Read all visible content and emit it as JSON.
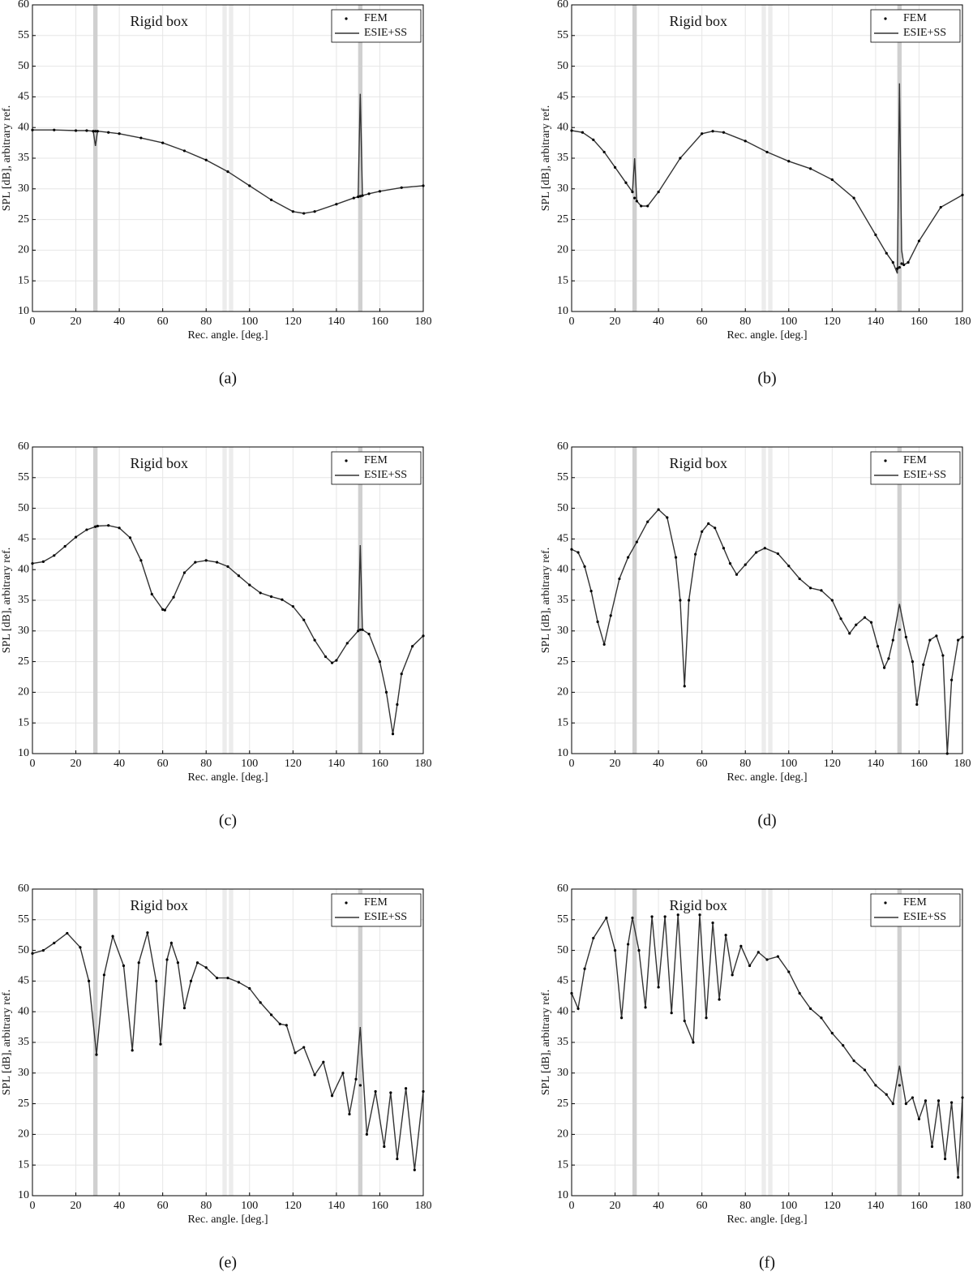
{
  "chart_data": [
    {
      "type": "line",
      "annotation": "Rigid box",
      "caption": "(a)",
      "xlabel": "Rec. angle. [deg.]",
      "ylabel": "SPL [dB], arbitrary ref.",
      "xlim": [
        0,
        180
      ],
      "ylim": [
        10,
        60
      ],
      "xticks": [
        0,
        20,
        40,
        60,
        80,
        100,
        120,
        140,
        160,
        180
      ],
      "yticks": [
        10,
        15,
        20,
        25,
        30,
        35,
        40,
        45,
        50,
        55,
        60
      ],
      "grid": true,
      "legend": "upper right",
      "highlight_bands": [
        [
          28,
          30
        ],
        [
          150,
          152
        ]
      ],
      "light_bands": [
        [
          87.5,
          89.5
        ],
        [
          90.5,
          92.5
        ]
      ],
      "x": [
        0,
        10,
        20,
        25,
        28,
        29,
        30,
        35,
        40,
        50,
        60,
        70,
        80,
        90,
        100,
        110,
        120,
        125,
        130,
        140,
        148,
        150,
        151,
        152,
        155,
        160,
        170,
        180
      ],
      "series": [
        {
          "name": "FEM",
          "color": "#000000",
          "values": [
            39.6,
            39.6,
            39.5,
            39.5,
            39.4,
            39.4,
            39.4,
            39.2,
            39,
            38.3,
            37.5,
            36.2,
            34.7,
            32.8,
            30.5,
            28.2,
            26.3,
            26,
            26.3,
            27.5,
            28.5,
            28.7,
            28.8,
            28.9,
            29.2,
            29.6,
            30.2,
            30.5
          ]
        },
        {
          "name": "ESIE+SS",
          "color": "#333333",
          "values": [
            39.6,
            39.6,
            39.5,
            39.5,
            39.4,
            37,
            39.4,
            39.2,
            39,
            38.3,
            37.5,
            36.2,
            34.7,
            32.8,
            30.5,
            28.2,
            26.3,
            26,
            26.3,
            27.5,
            28.5,
            28.7,
            45.5,
            28.9,
            29.2,
            29.6,
            30.2,
            30.5
          ]
        }
      ]
    },
    {
      "type": "line",
      "annotation": "Rigid box",
      "caption": "(b)",
      "xlabel": "Rec. angle. [deg.]",
      "ylabel": "SPL [dB], arbitrary ref.",
      "xlim": [
        0,
        180
      ],
      "ylim": [
        10,
        60
      ],
      "xticks": [
        0,
        20,
        40,
        60,
        80,
        100,
        120,
        140,
        160,
        180
      ],
      "yticks": [
        10,
        15,
        20,
        25,
        30,
        35,
        40,
        45,
        50,
        55,
        60
      ],
      "grid": true,
      "legend": "upper right",
      "highlight_bands": [
        [
          28,
          30
        ],
        [
          150,
          152
        ]
      ],
      "light_bands": [
        [
          87.5,
          89.5
        ],
        [
          90.5,
          92.5
        ]
      ],
      "x": [
        0,
        5,
        10,
        15,
        20,
        25,
        28,
        29,
        30,
        32,
        35,
        40,
        50,
        60,
        65,
        70,
        80,
        90,
        100,
        110,
        120,
        130,
        140,
        145,
        148,
        150,
        151,
        152,
        153,
        155,
        160,
        170,
        180
      ],
      "series": [
        {
          "name": "FEM",
          "color": "#000000",
          "values": [
            39.5,
            39.2,
            38,
            36,
            33.5,
            31,
            29.5,
            28.5,
            28,
            27.2,
            27.2,
            29.5,
            35,
            39,
            39.4,
            39.2,
            37.8,
            36,
            34.5,
            33.3,
            31.5,
            28.5,
            22.5,
            19.5,
            18,
            17,
            17.2,
            17.8,
            17.6,
            18,
            21.5,
            27,
            29
          ]
        },
        {
          "name": "ESIE+SS",
          "color": "#333333",
          "values": [
            39.5,
            39.2,
            38,
            36,
            33.5,
            31,
            29.5,
            35,
            28,
            27.2,
            27.2,
            29.5,
            35,
            39,
            39.4,
            39.2,
            37.8,
            36,
            34.5,
            33.3,
            31.5,
            28.5,
            22.5,
            19.5,
            18,
            16.2,
            47.2,
            20,
            17.6,
            18,
            21.5,
            27,
            29
          ]
        }
      ]
    },
    {
      "type": "line",
      "annotation": "Rigid box",
      "caption": "(c)",
      "xlabel": "Rec. angle. [deg.]",
      "ylabel": "SPL [dB], arbitrary ref.",
      "xlim": [
        0,
        180
      ],
      "ylim": [
        10,
        60
      ],
      "xticks": [
        0,
        20,
        40,
        60,
        80,
        100,
        120,
        140,
        160,
        180
      ],
      "yticks": [
        10,
        15,
        20,
        25,
        30,
        35,
        40,
        45,
        50,
        55,
        60
      ],
      "grid": true,
      "legend": "upper right",
      "highlight_bands": [
        [
          28,
          30
        ],
        [
          150,
          152
        ]
      ],
      "light_bands": [
        [
          87.5,
          89.5
        ],
        [
          90.5,
          92.5
        ]
      ],
      "x": [
        0,
        5,
        10,
        15,
        20,
        25,
        29,
        30,
        35,
        40,
        45,
        50,
        55,
        60,
        61,
        65,
        70,
        75,
        80,
        85,
        90,
        95,
        100,
        105,
        110,
        115,
        120,
        125,
        130,
        135,
        138,
        140,
        145,
        150,
        151,
        152,
        155,
        160,
        163,
        166,
        168,
        170,
        175,
        180
      ],
      "series": [
        {
          "name": "FEM",
          "color": "#000000",
          "values": [
            41,
            41.3,
            42.3,
            43.8,
            45.3,
            46.5,
            47,
            47.1,
            47.2,
            46.8,
            45.2,
            41.5,
            36,
            33.5,
            33.4,
            35.5,
            39.5,
            41.2,
            41.5,
            41.2,
            40.5,
            39,
            37.5,
            36.2,
            35.6,
            35.1,
            34,
            31.8,
            28.5,
            25.8,
            24.8,
            25.2,
            28,
            30,
            30.2,
            30.2,
            29.5,
            25,
            20,
            13.2,
            18,
            23,
            27.5,
            29.2
          ]
        },
        {
          "name": "ESIE+SS",
          "color": "#333333",
          "values": [
            41,
            41.3,
            42.3,
            43.8,
            45.3,
            46.5,
            47,
            47.1,
            47.2,
            46.8,
            45.2,
            41.5,
            36,
            33.5,
            33.4,
            35.5,
            39.5,
            41.2,
            41.5,
            41.2,
            40.5,
            39,
            37.5,
            36.2,
            35.6,
            35.1,
            34,
            31.8,
            28.5,
            25.8,
            24.8,
            25.2,
            28,
            30,
            44,
            30.2,
            29.5,
            25,
            20,
            13.2,
            18,
            23,
            27.5,
            29.2
          ]
        }
      ]
    },
    {
      "type": "line",
      "annotation": "Rigid box",
      "caption": "(d)",
      "xlabel": "Rec. angle. [deg.]",
      "ylabel": "SPL [dB], arbitrary ref.",
      "xlim": [
        0,
        180
      ],
      "ylim": [
        10,
        60
      ],
      "xticks": [
        0,
        20,
        40,
        60,
        80,
        100,
        120,
        140,
        160,
        180
      ],
      "yticks": [
        10,
        15,
        20,
        25,
        30,
        35,
        40,
        45,
        50,
        55,
        60
      ],
      "grid": true,
      "legend": "upper right",
      "highlight_bands": [
        [
          28,
          30
        ],
        [
          150,
          152
        ]
      ],
      "light_bands": [
        [
          87.5,
          89.5
        ],
        [
          90.5,
          92.5
        ]
      ],
      "x": [
        0,
        3,
        6,
        9,
        12,
        15,
        18,
        22,
        26,
        30,
        35,
        40,
        44,
        48,
        50,
        52,
        54,
        57,
        60,
        63,
        66,
        70,
        73,
        76,
        80,
        85,
        89,
        95,
        100,
        105,
        110,
        115,
        120,
        124,
        128,
        131,
        135,
        138,
        141,
        144,
        146,
        148,
        151,
        154,
        157,
        159,
        162,
        165,
        168,
        171,
        173,
        175,
        178,
        180
      ],
      "series": [
        {
          "name": "FEM",
          "color": "#000000",
          "values": [
            43.3,
            42.8,
            40.5,
            36.5,
            31.5,
            27.8,
            32.5,
            38.5,
            42,
            44.5,
            47.8,
            49.8,
            48.5,
            42,
            35,
            21,
            35,
            42.5,
            46.2,
            47.5,
            46.8,
            43.5,
            41,
            39.2,
            40.8,
            42.8,
            43.5,
            42.6,
            40.6,
            38.5,
            37,
            36.6,
            35,
            32,
            29.6,
            31,
            32.2,
            31.4,
            27.5,
            24,
            25.5,
            28.5,
            30.2,
            29,
            25,
            18,
            24.5,
            28.5,
            29.2,
            26,
            10,
            22,
            28.5,
            29
          ]
        },
        {
          "name": "ESIE+SS",
          "color": "#333333",
          "values": [
            43.3,
            42.8,
            40.5,
            36.5,
            31.5,
            27.8,
            32.5,
            38.5,
            42,
            44.5,
            47.8,
            49.8,
            48.5,
            42,
            35,
            21,
            35,
            42.5,
            46.2,
            47.5,
            46.8,
            43.5,
            41,
            39.2,
            40.8,
            42.8,
            43.5,
            42.6,
            40.6,
            38.5,
            37,
            36.6,
            35,
            32,
            29.6,
            31,
            32.2,
            31.4,
            27.5,
            24,
            25.5,
            28.5,
            34.4,
            29,
            25,
            18,
            24.5,
            28.5,
            29.2,
            26,
            10,
            22,
            28.5,
            29
          ]
        }
      ]
    },
    {
      "type": "line",
      "annotation": "Rigid box",
      "caption": "(e)",
      "xlabel": "Rec. angle. [deg.]",
      "ylabel": "SPL [dB], arbitrary ref.",
      "xlim": [
        0,
        180
      ],
      "ylim": [
        10,
        60
      ],
      "xticks": [
        0,
        20,
        40,
        60,
        80,
        100,
        120,
        140,
        160,
        180
      ],
      "yticks": [
        10,
        15,
        20,
        25,
        30,
        35,
        40,
        45,
        50,
        55,
        60
      ],
      "grid": true,
      "legend": "upper right",
      "highlight_bands": [
        [
          28,
          30
        ],
        [
          150,
          152
        ]
      ],
      "light_bands": [
        [
          87.5,
          89.5
        ],
        [
          90.5,
          92.5
        ]
      ],
      "x": [
        0,
        5,
        10,
        16,
        22,
        26,
        29.5,
        33,
        37,
        42,
        46,
        49,
        53,
        57,
        59,
        62,
        64,
        67,
        70,
        73,
        76,
        80,
        85,
        90,
        95,
        100,
        105,
        110,
        114,
        117,
        121,
        125,
        130,
        134,
        138,
        143,
        146,
        149,
        151,
        154,
        158,
        162,
        165,
        168,
        172,
        176,
        180
      ],
      "series": [
        {
          "name": "FEM",
          "color": "#000000",
          "values": [
            49.5,
            50,
            51.2,
            52.8,
            50.5,
            45,
            33,
            46,
            52.3,
            47.5,
            33.7,
            48,
            52.9,
            45,
            34.7,
            48.5,
            51.2,
            48,
            40.6,
            45,
            48,
            47.2,
            45.5,
            45.5,
            44.8,
            43.8,
            41.5,
            39.5,
            38,
            37.8,
            33.3,
            34.2,
            29.7,
            31.8,
            26.3,
            30,
            23.3,
            29,
            28,
            20,
            27,
            18,
            26.8,
            16,
            27.5,
            14.2,
            27
          ]
        },
        {
          "name": "ESIE+SS",
          "color": "#333333",
          "values": [
            49.5,
            50,
            51.2,
            52.8,
            50.5,
            45,
            33,
            46,
            52.3,
            47.5,
            33.7,
            48,
            52.9,
            45,
            34.7,
            48.5,
            51.2,
            48,
            40.6,
            45,
            48,
            47.2,
            45.5,
            45.5,
            44.8,
            43.8,
            41.5,
            39.5,
            38,
            37.8,
            33.3,
            34.2,
            29.7,
            31.8,
            26.3,
            30,
            23.3,
            29,
            37.5,
            20,
            27,
            18,
            26.8,
            16,
            27.5,
            14.2,
            27
          ]
        }
      ]
    },
    {
      "type": "line",
      "annotation": "Rigid box",
      "caption": "(f)",
      "xlabel": "Rec. angle. [deg.]",
      "ylabel": "SPL [dB], arbitrary ref.",
      "xlim": [
        0,
        180
      ],
      "ylim": [
        10,
        60
      ],
      "xticks": [
        0,
        20,
        40,
        60,
        80,
        100,
        120,
        140,
        160,
        180
      ],
      "yticks": [
        10,
        15,
        20,
        25,
        30,
        35,
        40,
        45,
        50,
        55,
        60
      ],
      "grid": true,
      "legend": "upper right",
      "highlight_bands": [
        [
          28,
          30
        ],
        [
          150,
          152
        ]
      ],
      "light_bands": [
        [
          87.5,
          89.5
        ],
        [
          90.5,
          92.5
        ]
      ],
      "x": [
        0,
        3,
        6,
        10,
        16,
        20,
        23,
        26,
        28,
        31,
        34,
        37,
        40,
        43,
        46,
        49,
        52,
        56,
        59,
        62,
        65,
        68,
        71,
        74,
        78,
        82,
        86,
        90,
        95,
        100,
        105,
        110,
        115,
        120,
        125,
        130,
        135,
        140,
        145,
        148,
        151,
        154,
        157,
        160,
        163,
        166,
        169,
        172,
        175,
        178,
        180
      ],
      "series": [
        {
          "name": "FEM",
          "color": "#000000",
          "values": [
            43,
            40.5,
            47,
            52,
            55.3,
            50,
            39,
            51,
            55.3,
            50,
            40.7,
            55.5,
            44,
            55.5,
            39.8,
            55.8,
            38.5,
            35,
            55.8,
            39,
            54.5,
            42,
            52.5,
            46,
            50.7,
            47.5,
            49.7,
            48.5,
            49,
            46.5,
            43,
            40.5,
            39,
            36.5,
            34.5,
            32,
            30.5,
            28,
            26.5,
            25,
            28,
            25,
            26,
            22.5,
            25.5,
            18,
            25.5,
            16,
            25.2,
            13,
            26
          ]
        },
        {
          "name": "ESIE+SS",
          "color": "#333333",
          "values": [
            43,
            40.5,
            47,
            52,
            55.3,
            50,
            39,
            51,
            55.3,
            50,
            40.7,
            55.5,
            44,
            55.5,
            39.8,
            55.8,
            38.5,
            35,
            55.8,
            39,
            54.5,
            42,
            52.5,
            46,
            50.7,
            47.5,
            49.7,
            48.5,
            49,
            46.5,
            43,
            40.5,
            39,
            36.5,
            34.5,
            32,
            30.5,
            28,
            26.5,
            25,
            31.2,
            25,
            26,
            22.5,
            25.5,
            18,
            25.5,
            16,
            25.2,
            13,
            26
          ]
        }
      ]
    }
  ]
}
